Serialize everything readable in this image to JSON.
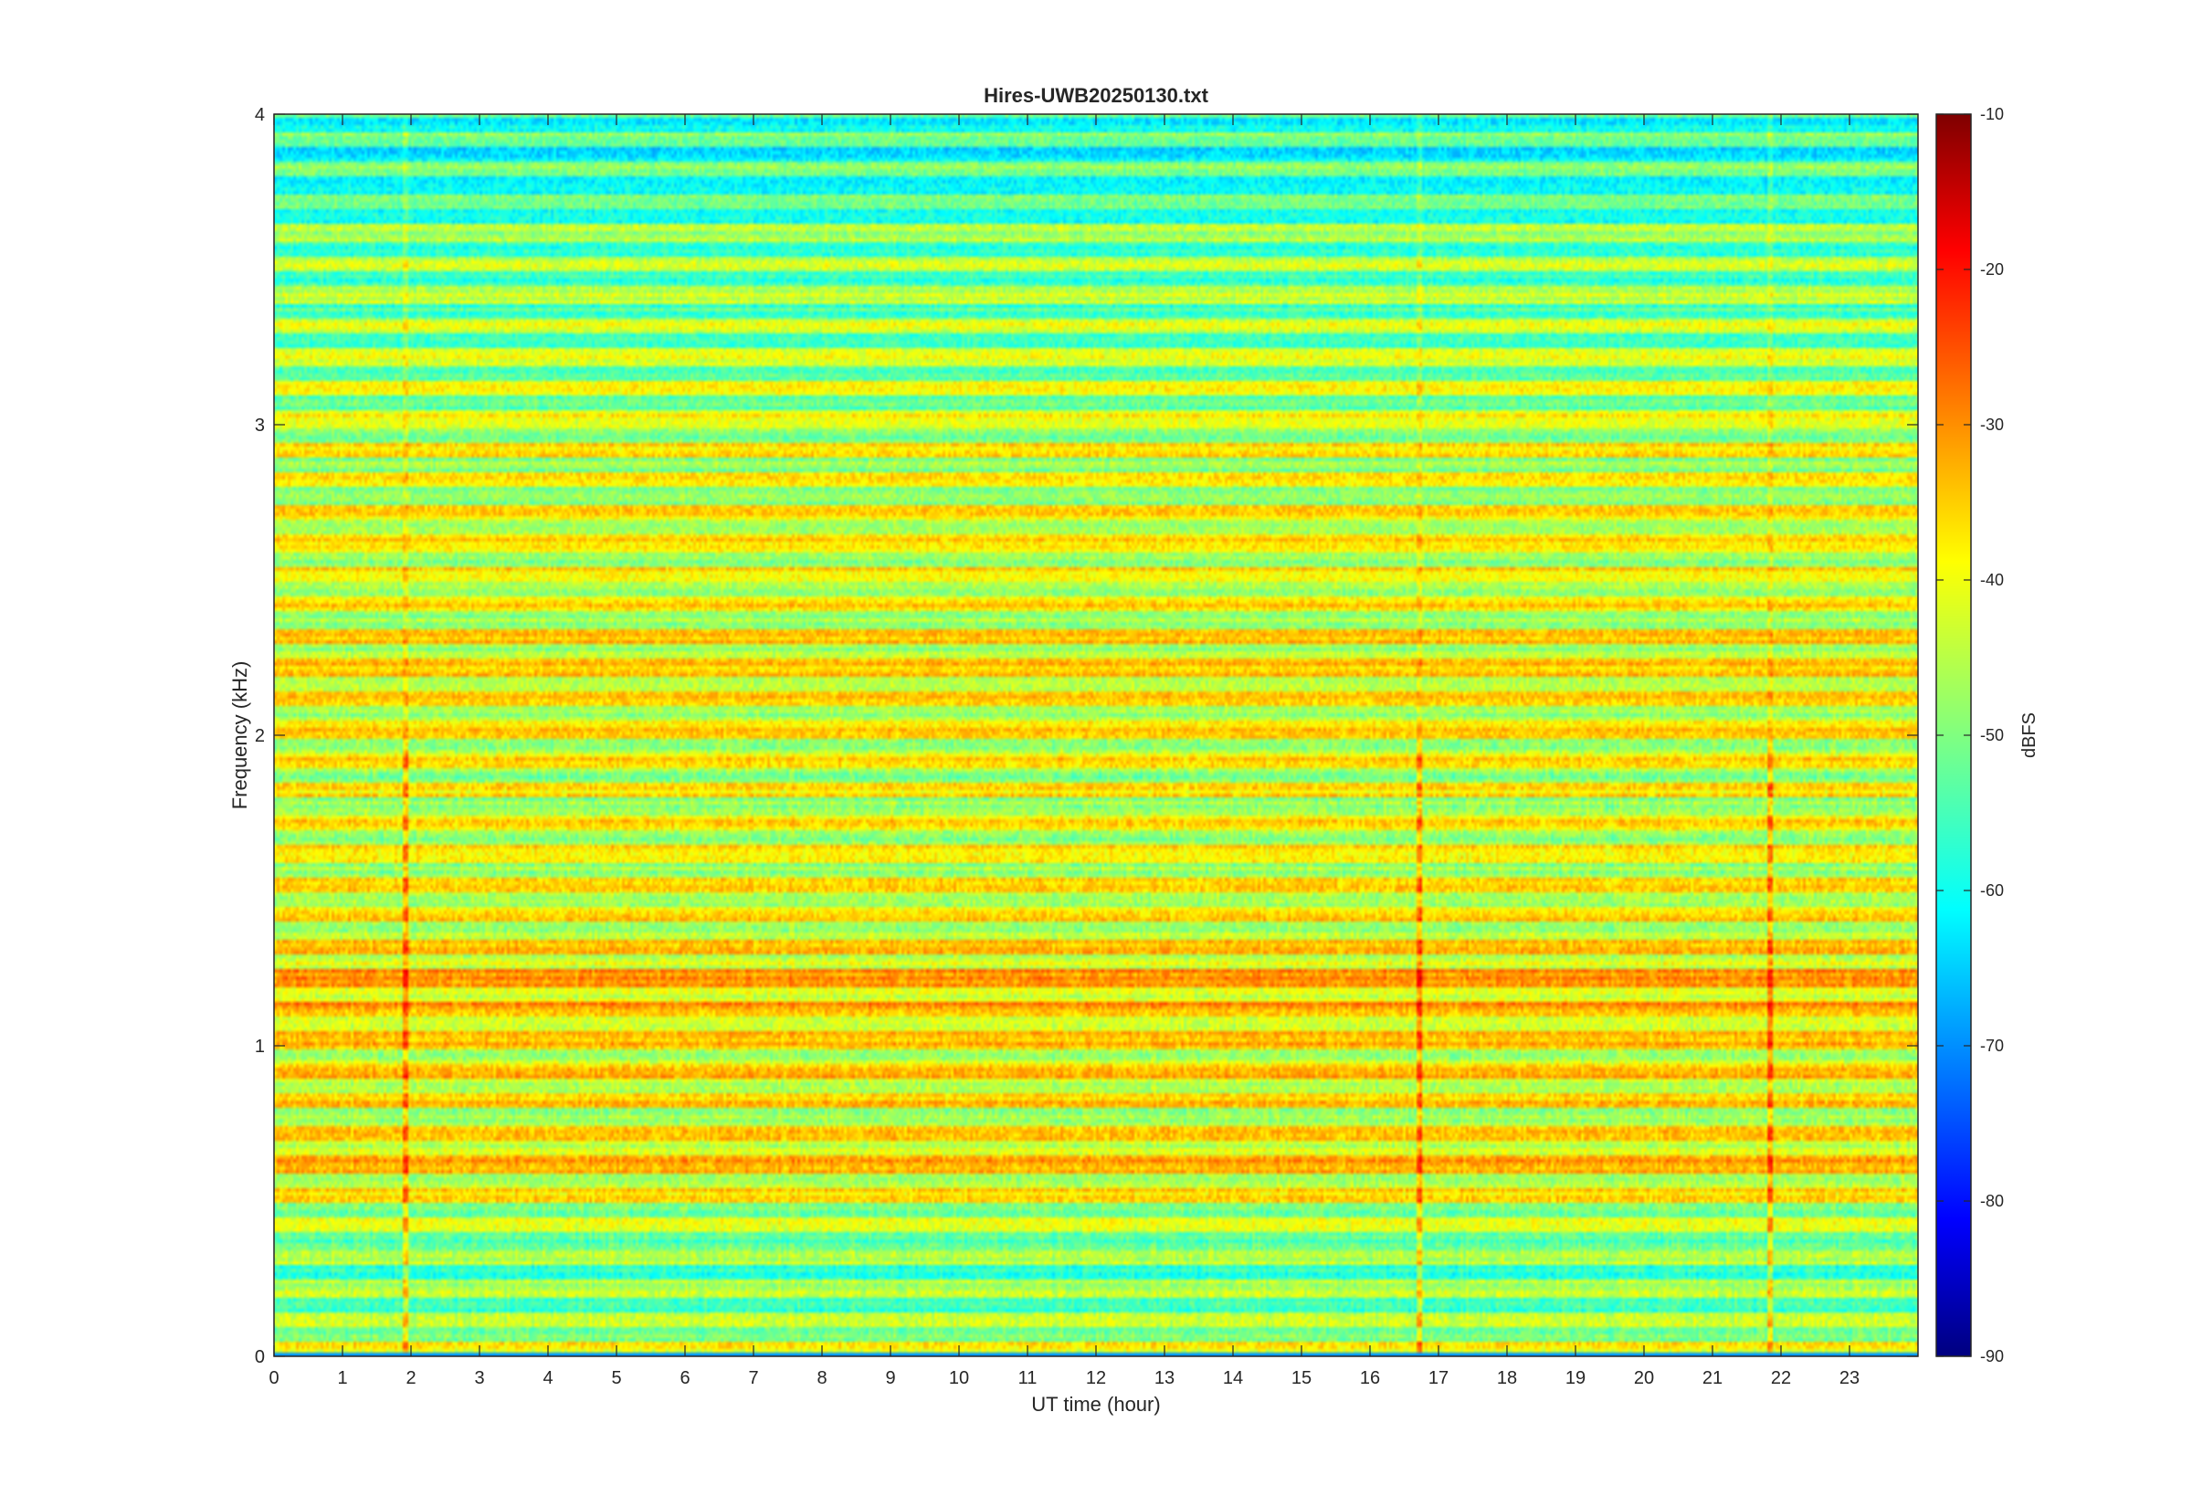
{
  "chart_data": {
    "type": "heatmap",
    "title": "Hires-UWB20250130.txt",
    "xlabel": "UT time (hour)",
    "ylabel": "Frequency (kHz)",
    "colorbar_label": "dBFS",
    "colormap": "jet",
    "x_range": [
      0,
      24
    ],
    "y_range": [
      0,
      4
    ],
    "clim": [
      -90,
      -10
    ],
    "x_ticks": [
      "0",
      "1",
      "2",
      "3",
      "4",
      "5",
      "6",
      "7",
      "8",
      "9",
      "10",
      "11",
      "12",
      "13",
      "14",
      "15",
      "16",
      "17",
      "18",
      "19",
      "20",
      "21",
      "22",
      "23"
    ],
    "y_ticks": [
      "0",
      "1",
      "2",
      "3",
      "4"
    ],
    "colorbar_ticks": [
      "-10",
      "-20",
      "-30",
      "-40",
      "-50",
      "-60",
      "-70",
      "-80",
      "-90"
    ],
    "approx_band_levels_dBFS": {
      "bands_kHz": [
        0.05,
        0.25,
        0.45,
        0.65,
        0.75,
        0.95,
        1.05,
        1.15,
        1.25,
        1.45,
        1.55,
        1.75,
        1.85,
        2.35,
        2.45,
        2.95,
        3.05,
        3.55,
        3.75,
        3.95
      ],
      "levels": [
        -45,
        -52,
        -45,
        -38,
        -42,
        -40,
        -40,
        -37,
        -37,
        -43,
        -42,
        -43,
        -43,
        -41,
        -43,
        -43,
        -46,
        -50,
        -55,
        -55
      ]
    },
    "notes_visible": "Horizontal harmonic bands roughly every 0.05 kHz; stronger (yellow/orange) below ~2.5 kHz, weaker (blue/cyan) above 3 kHz; brief vertical red spikes near 1.9 h, 16.7 h and 21.8 h around 1.1–1.3 kHz."
  }
}
